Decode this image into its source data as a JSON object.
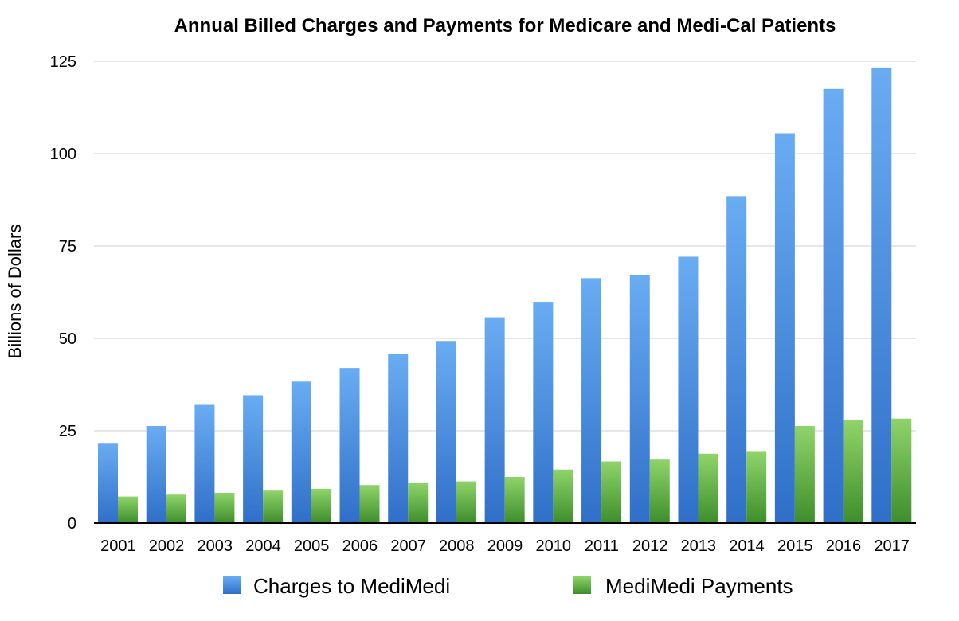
{
  "chart_data": {
    "type": "bar",
    "title": "Annual Billed Charges and Payments for Medicare and Medi-Cal Patients",
    "xlabel": "",
    "ylabel": "Billions of Dollars",
    "ylim": [
      0,
      125
    ],
    "yticks": [
      0,
      25,
      50,
      75,
      100,
      125
    ],
    "grid": true,
    "legend_position": "bottom",
    "categories": [
      "2001",
      "2002",
      "2003",
      "2004",
      "2005",
      "2006",
      "2007",
      "2008",
      "2009",
      "2010",
      "2011",
      "2012",
      "2013",
      "2014",
      "2015",
      "2016",
      "2017"
    ],
    "series": [
      {
        "name": "Charges to MediMedi",
        "color": "#4a8fe0",
        "values": [
          21.5,
          26.3,
          32,
          34.6,
          38.3,
          42,
          45.7,
          49.3,
          55.7,
          59.9,
          66.3,
          67.2,
          72.1,
          88.5,
          105.5,
          117.5,
          123.3
        ]
      },
      {
        "name": "MediMedi Payments",
        "color": "#5fae3e",
        "values": [
          7.2,
          7.7,
          8.2,
          8.8,
          9.3,
          10.3,
          10.8,
          11.3,
          12.5,
          14.5,
          16.7,
          17.2,
          18.8,
          19.3,
          26.3,
          27.8,
          28.3
        ]
      }
    ]
  }
}
